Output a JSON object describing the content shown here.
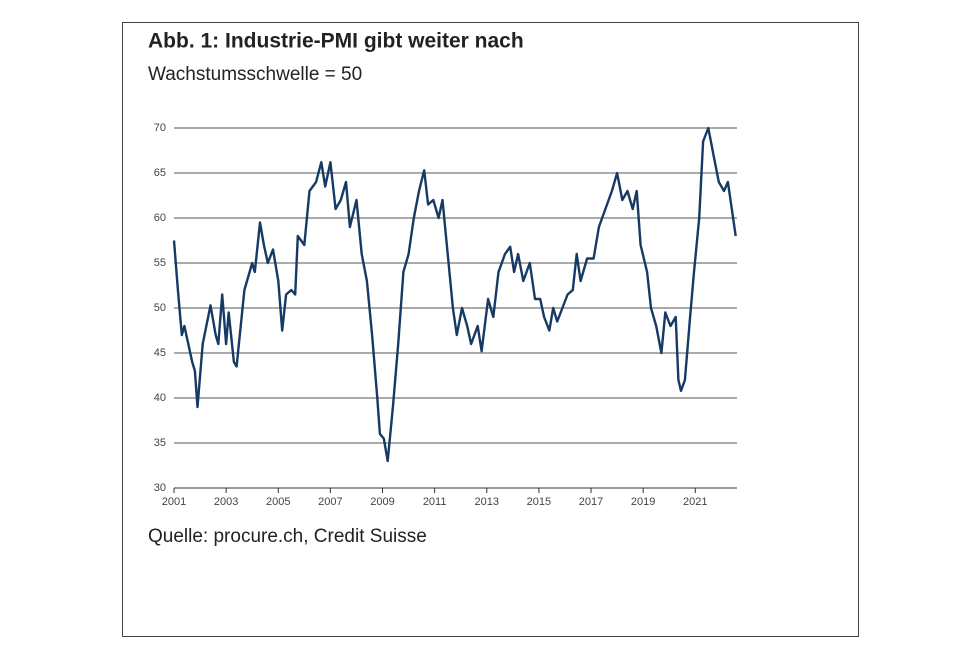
{
  "chart_data": {
    "type": "line",
    "title": "Abb. 1: Industrie-PMI gibt weiter nach",
    "subtitle": "Wachstumsschwelle = 50",
    "source": "Quelle: procure.ch, Credit Suisse",
    "x": [
      2001.0,
      2001.15,
      2001.3,
      2001.4,
      2001.55,
      2001.7,
      2001.8,
      2001.9,
      2002.1,
      2002.4,
      2002.6,
      2002.7,
      2002.85,
      2003.0,
      2003.1,
      2003.3,
      2003.4,
      2003.7,
      2004.0,
      2004.1,
      2004.3,
      2004.45,
      2004.6,
      2004.8,
      2005.0,
      2005.15,
      2005.3,
      2005.5,
      2005.65,
      2005.75,
      2006.0,
      2006.2,
      2006.45,
      2006.65,
      2006.8,
      2007.0,
      2007.2,
      2007.4,
      2007.6,
      2007.75,
      2008.0,
      2008.2,
      2008.4,
      2008.6,
      2008.8,
      2008.9,
      2009.05,
      2009.2,
      2009.4,
      2009.6,
      2009.8,
      2010.0,
      2010.2,
      2010.4,
      2010.6,
      2010.75,
      2010.95,
      2011.15,
      2011.3,
      2011.5,
      2011.7,
      2011.85,
      2012.05,
      2012.25,
      2012.4,
      2012.65,
      2012.8,
      2013.05,
      2013.25,
      2013.45,
      2013.7,
      2013.9,
      2014.05,
      2014.2,
      2014.4,
      2014.65,
      2014.85,
      2015.05,
      2015.2,
      2015.4,
      2015.55,
      2015.7,
      2015.9,
      2016.1,
      2016.3,
      2016.45,
      2016.6,
      2016.85,
      2017.1,
      2017.3,
      2017.55,
      2017.8,
      2018.0,
      2018.2,
      2018.4,
      2018.6,
      2018.75,
      2018.9,
      2019.15,
      2019.3,
      2019.5,
      2019.7,
      2019.85,
      2020.05,
      2020.25,
      2020.35,
      2020.45,
      2020.6,
      2020.8,
      2020.95,
      2021.15,
      2021.3,
      2021.5,
      2021.7,
      2021.9,
      2022.1,
      2022.25,
      2022.4,
      2022.55
    ],
    "series": [
      {
        "name": "Industrie-PMI",
        "color": "#163a63",
        "values": [
          57.5,
          52,
          47,
          48,
          46,
          44,
          43,
          39,
          46,
          50.3,
          47,
          46,
          51.5,
          46,
          49.5,
          44,
          43.5,
          52,
          55,
          54,
          59.5,
          57,
          55,
          56.5,
          53,
          47.5,
          51.5,
          52,
          51.5,
          58,
          57,
          63,
          64,
          66.2,
          63.5,
          66.2,
          61,
          62,
          64,
          59,
          62,
          56,
          53,
          47,
          40,
          36,
          35.5,
          33,
          39,
          46,
          54,
          56,
          60,
          63,
          65.3,
          61.5,
          62,
          60,
          62,
          56,
          50,
          47,
          50,
          48,
          46,
          48,
          45.2,
          51,
          49,
          54,
          56,
          56.8,
          54,
          56,
          53,
          55,
          51,
          51,
          49,
          47.5,
          50,
          48.5,
          50,
          51.5,
          52,
          56,
          53,
          55.5,
          55.5,
          59,
          61,
          63,
          65,
          62,
          63,
          61,
          63,
          57,
          54,
          50,
          48,
          45,
          49.5,
          48,
          49,
          42,
          40.8,
          42,
          49,
          54,
          60,
          68.5,
          70,
          67,
          64,
          63,
          64,
          61,
          58
        ]
      }
    ],
    "xlim": [
      2001,
      2022.6
    ],
    "xticks": [
      2001,
      2003,
      2005,
      2007,
      2009,
      2011,
      2013,
      2015,
      2017,
      2019,
      2021
    ],
    "ylim": [
      30,
      70
    ],
    "yticks": [
      30,
      35,
      40,
      45,
      50,
      55,
      60,
      65,
      70
    ],
    "grid": true
  }
}
